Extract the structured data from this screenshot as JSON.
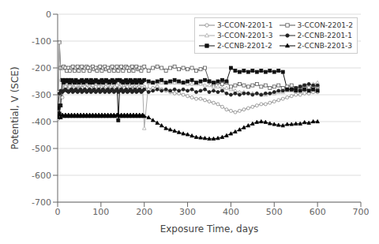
{
  "chart_data": {
    "type": "line",
    "xlabel": "Exposure Time, days",
    "ylabel": "Potential, V (SCE)",
    "xlim": [
      0,
      700
    ],
    "ylim": [
      -700,
      0
    ],
    "xticks": [
      0,
      100,
      200,
      300,
      400,
      500,
      600,
      700
    ],
    "yticks": [
      0,
      -100,
      -200,
      -300,
      -400,
      -500,
      -600,
      -700
    ],
    "grid": "y",
    "legend": "upper right",
    "x": [
      1,
      4,
      7,
      11,
      14,
      18,
      21,
      25,
      28,
      32,
      35,
      39,
      42,
      46,
      49,
      53,
      56,
      60,
      63,
      67,
      70,
      74,
      77,
      81,
      84,
      88,
      91,
      95,
      98,
      102,
      105,
      109,
      112,
      116,
      119,
      123,
      126,
      130,
      133,
      137,
      140,
      144,
      147,
      151,
      154,
      158,
      161,
      165,
      168,
      172,
      175,
      179,
      182,
      186,
      189,
      193,
      196,
      200,
      210,
      220,
      230,
      240,
      250,
      260,
      270,
      280,
      290,
      300,
      310,
      320,
      330,
      340,
      350,
      360,
      370,
      380,
      390,
      400,
      410,
      420,
      430,
      440,
      450,
      460,
      470,
      480,
      490,
      500,
      510,
      520,
      530,
      540,
      550,
      560,
      570,
      580,
      590,
      600
    ],
    "series": [
      {
        "name": "3-CCON-2201-1",
        "color": "#888888",
        "marker": "open-circle",
        "values": [
          -390,
          -380,
          -290,
          -310,
          -260,
          -270,
          -280,
          -260,
          -270,
          -280,
          -260,
          -275,
          -280,
          -265,
          -280,
          -265,
          -275,
          -265,
          -270,
          -275,
          -265,
          -270,
          -275,
          -265,
          -275,
          -270,
          -260,
          -270,
          -280,
          -270,
          -265,
          -275,
          -270,
          -265,
          -280,
          -270,
          -265,
          -275,
          -270,
          -265,
          -280,
          -270,
          -265,
          -280,
          -275,
          -265,
          -270,
          -280,
          -270,
          -265,
          -280,
          -270,
          -265,
          -275,
          -270,
          -265,
          -275,
          -270,
          -280,
          -275,
          -270,
          -280,
          -285,
          -290,
          -295,
          -295,
          -300,
          -305,
          -310,
          -315,
          -315,
          -320,
          -325,
          -330,
          -335,
          -345,
          -355,
          -360,
          -365,
          -360,
          -355,
          -350,
          -345,
          -340,
          -335,
          -335,
          -330,
          -325,
          -320,
          -315,
          -310,
          -305,
          -300,
          -300,
          -295,
          -295,
          -290,
          -290
        ]
      },
      {
        "name": "3-CCON-2201-2",
        "color": "#555555",
        "marker": "open-square",
        "values": [
          -290,
          -105,
          -200,
          -200,
          -195,
          -200,
          -210,
          -200,
          -210,
          -200,
          -195,
          -210,
          -200,
          -195,
          -210,
          -200,
          -195,
          -210,
          -200,
          -195,
          -200,
          -210,
          -200,
          -195,
          -205,
          -200,
          -210,
          -200,
          -195,
          -210,
          -200,
          -195,
          -205,
          -200,
          -210,
          -200,
          -195,
          -210,
          -200,
          -195,
          -210,
          -200,
          -195,
          -210,
          -200,
          -195,
          -200,
          -210,
          -200,
          -195,
          -210,
          -200,
          -195,
          -205,
          -200,
          -210,
          -200,
          -195,
          -210,
          -200,
          -195,
          -200,
          -210,
          -200,
          -195,
          -205,
          -200,
          -205,
          -200,
          -210,
          -205,
          -200,
          -250,
          -260,
          -255,
          -260,
          -255,
          -270,
          -265,
          -260,
          -265,
          -270,
          -265,
          -260,
          -270,
          -265,
          -275,
          -270,
          -265,
          -275,
          -270,
          -265,
          -275,
          -270,
          -265,
          -275,
          -270,
          -270
        ]
      },
      {
        "name": "3-CCON-2201-3",
        "color": "#aaaaaa",
        "marker": "open-triangle",
        "values": [
          -370,
          -105,
          -245,
          -255,
          -250,
          -260,
          -255,
          -250,
          -260,
          -255,
          -250,
          -255,
          -265,
          -255,
          -260,
          -250,
          -255,
          -260,
          -255,
          -250,
          -260,
          -250,
          -255,
          -250,
          -255,
          -250,
          -260,
          -255,
          -250,
          -260,
          -255,
          -250,
          -255,
          -250,
          -260,
          -255,
          -250,
          -260,
          -255,
          -250,
          -255,
          -250,
          -260,
          -255,
          -250,
          -260,
          -255,
          -250,
          -255,
          -250,
          -260,
          -255,
          -250,
          -260,
          -255,
          -250,
          -265,
          -425,
          -255,
          -255,
          -255,
          -255,
          -255,
          -255,
          -255,
          -255,
          -255,
          -260,
          -260,
          -260,
          -260,
          -265,
          -265,
          -270,
          -270,
          -275,
          -275,
          -280,
          -285,
          -290,
          -290,
          -295,
          -295,
          -295,
          -300,
          -300,
          -295,
          -295,
          -290,
          -290,
          -285,
          -285,
          -280,
          -275,
          -270,
          -265,
          -260,
          -255
        ]
      },
      {
        "name": "2-CCNB-2201-1",
        "color": "#222222",
        "marker": "circle",
        "values": [
          -340,
          -295,
          -285,
          -290,
          -285,
          -280,
          -285,
          -290,
          -285,
          -280,
          -290,
          -285,
          -280,
          -290,
          -285,
          -280,
          -290,
          -285,
          -280,
          -290,
          -285,
          -280,
          -290,
          -285,
          -280,
          -290,
          -285,
          -280,
          -290,
          -285,
          -280,
          -290,
          -285,
          -280,
          -290,
          -285,
          -280,
          -290,
          -285,
          -280,
          -290,
          -285,
          -280,
          -290,
          -285,
          -280,
          -290,
          -285,
          -280,
          -290,
          -285,
          -280,
          -290,
          -285,
          -280,
          -290,
          -285,
          -280,
          -290,
          -285,
          -280,
          -285,
          -280,
          -285,
          -280,
          -285,
          -280,
          -285,
          -280,
          -290,
          -285,
          -280,
          -290,
          -285,
          -290,
          -285,
          -295,
          -300,
          -295,
          -300,
          -295,
          -295,
          -300,
          -295,
          -300,
          -295,
          -295,
          -290,
          -285,
          -285,
          -280,
          -280,
          -275,
          -270,
          -265,
          -260,
          -265,
          -265
        ]
      },
      {
        "name": "2-CCNB-2201-2",
        "color": "#111111",
        "marker": "square",
        "values": [
          -350,
          -370,
          -340,
          -245,
          -255,
          -245,
          -250,
          -245,
          -255,
          -245,
          -250,
          -255,
          -245,
          -250,
          -255,
          -250,
          -245,
          -255,
          -250,
          -245,
          -250,
          -255,
          -245,
          -255,
          -250,
          -245,
          -250,
          -255,
          -250,
          -245,
          -255,
          -250,
          -245,
          -250,
          -255,
          -250,
          -245,
          -255,
          -250,
          -245,
          -395,
          -245,
          -250,
          -255,
          -250,
          -245,
          -255,
          -250,
          -245,
          -255,
          -250,
          -245,
          -255,
          -250,
          -245,
          -255,
          -250,
          -245,
          -250,
          -255,
          -250,
          -245,
          -255,
          -250,
          -245,
          -250,
          -255,
          -250,
          -245,
          -255,
          -250,
          -245,
          -250,
          -255,
          -250,
          -245,
          -250,
          -200,
          -210,
          -215,
          -210,
          -215,
          -210,
          -215,
          -210,
          -215,
          -210,
          -215,
          -210,
          -215,
          -280,
          -280,
          -285,
          -285,
          -280,
          -285,
          -280,
          -285
        ]
      },
      {
        "name": "2-CCNB-2201-3",
        "color": "#000000",
        "marker": "triangle",
        "values": [
          -385,
          -375,
          -385,
          -375,
          -380,
          -375,
          -380,
          -375,
          -380,
          -375,
          -380,
          -375,
          -380,
          -375,
          -380,
          -375,
          -380,
          -375,
          -380,
          -375,
          -380,
          -375,
          -380,
          -375,
          -380,
          -375,
          -380,
          -375,
          -380,
          -375,
          -380,
          -375,
          -380,
          -375,
          -380,
          -375,
          -380,
          -375,
          -380,
          -375,
          -375,
          -380,
          -375,
          -380,
          -375,
          -380,
          -375,
          -380,
          -375,
          -380,
          -375,
          -380,
          -375,
          -380,
          -375,
          -380,
          -375,
          -380,
          -385,
          -395,
          -405,
          -415,
          -425,
          -430,
          -435,
          -440,
          -445,
          -448,
          -453,
          -458,
          -460,
          -462,
          -464,
          -464,
          -462,
          -458,
          -452,
          -445,
          -438,
          -430,
          -422,
          -415,
          -408,
          -402,
          -400,
          -402,
          -407,
          -410,
          -413,
          -415,
          -410,
          -410,
          -408,
          -408,
          -403,
          -405,
          -400,
          -400
        ]
      }
    ]
  }
}
